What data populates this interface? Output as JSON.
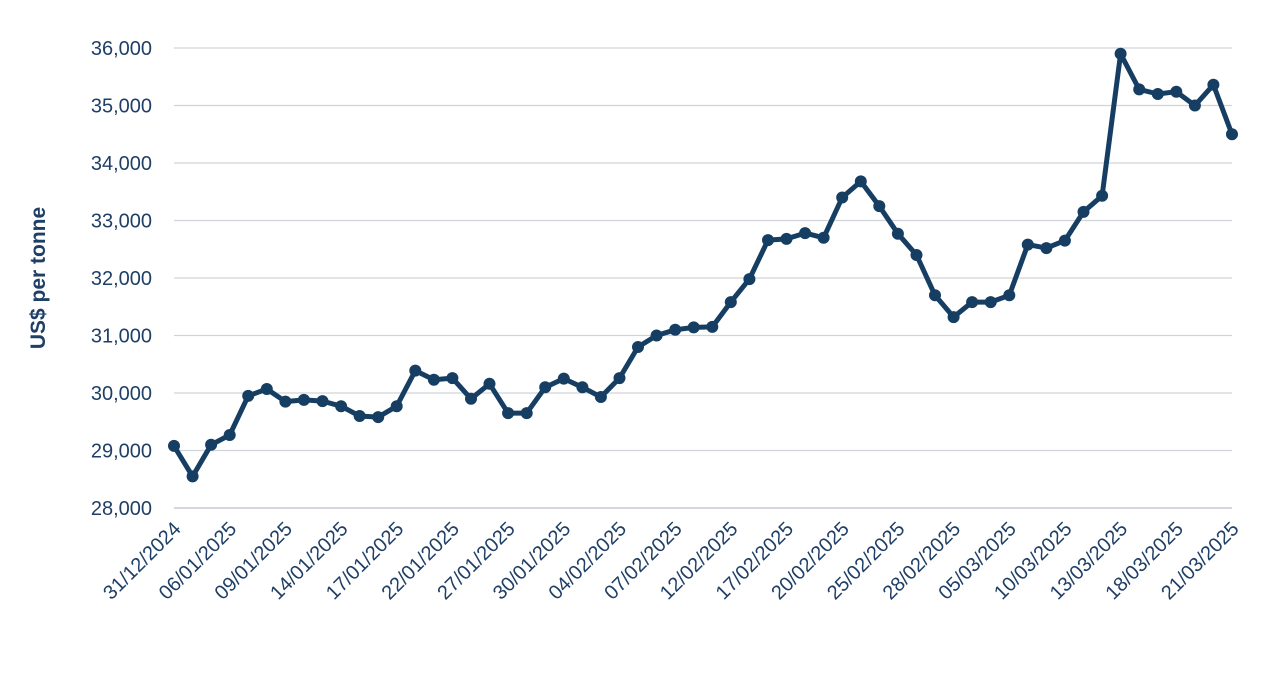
{
  "chart_data": {
    "type": "line",
    "ylabel": "US$ per tonne",
    "xlabel": "",
    "title": "",
    "ylim": [
      28000,
      36000
    ],
    "yticks": [
      "28,000",
      "29,000",
      "30,000",
      "31,000",
      "32,000",
      "33,000",
      "34,000",
      "35,000",
      "36,000"
    ],
    "xtick_labels": [
      "31/12/2024",
      "06/01/2025",
      "09/01/2025",
      "14/01/2025",
      "17/01/2025",
      "22/01/2025",
      "27/01/2025",
      "30/01/2025",
      "04/02/2025",
      "07/02/2025",
      "12/02/2025",
      "17/02/2025",
      "20/02/2025",
      "25/02/2025",
      "28/02/2025",
      "05/03/2025",
      "10/03/2025",
      "13/03/2025",
      "18/03/2025",
      "21/03/2025"
    ],
    "grid": true,
    "color": "#163e63",
    "series": [
      {
        "values": [
          29080,
          28550,
          29100,
          29270,
          29950,
          30070,
          29850,
          29880,
          29860,
          29770,
          29600,
          29580,
          29770,
          30390,
          30230,
          30260,
          29900,
          30160,
          29650,
          29650,
          30100,
          30250,
          30100,
          29930,
          30260,
          30800,
          31000,
          31100,
          31140,
          31150,
          31580,
          31980,
          32660,
          32680,
          32780,
          32700,
          33400,
          33680,
          33250,
          32770,
          32400,
          31700,
          31320,
          31580,
          31580,
          31700,
          32580,
          32520,
          32650,
          33150,
          33430,
          35900,
          35280,
          35200,
          35240,
          35000,
          35360,
          34500
        ]
      }
    ]
  }
}
